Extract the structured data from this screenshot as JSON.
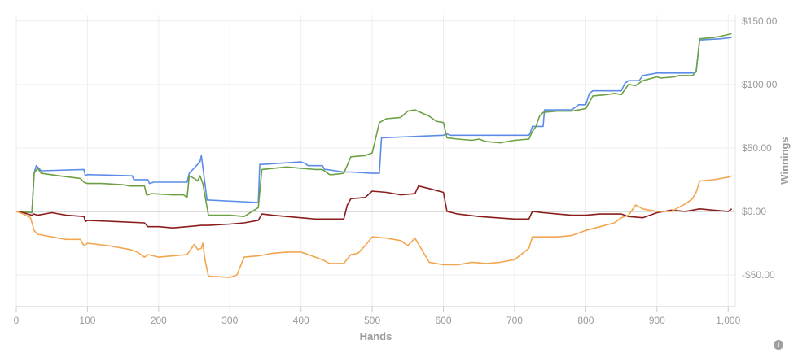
{
  "chart_data": {
    "type": "line",
    "xlabel": "Hands",
    "ylabel": "Winnings",
    "xlim": [
      0,
      1010
    ],
    "ylim": [
      -75,
      155
    ],
    "x_ticks": [
      0,
      100,
      200,
      300,
      400,
      500,
      600,
      700,
      800,
      900,
      1000
    ],
    "x_tick_labels": [
      "0",
      "100",
      "200",
      "300",
      "400",
      "500",
      "600",
      "700",
      "800",
      "900",
      "1,000"
    ],
    "y_ticks": [
      -50,
      0,
      50,
      100,
      150
    ],
    "y_tick_labels": [
      "-$50.00",
      "$0.00",
      "$50.00",
      "$100.00",
      "$150.00"
    ],
    "grid": true,
    "y_axis_position": "right",
    "legend": "none",
    "series": [
      {
        "color": "#5b8de8",
        "x": [
          0,
          22,
          25,
          28,
          30,
          35,
          35,
          95,
          97,
          100,
          163,
          165,
          185,
          187,
          193,
          196,
          200,
          240,
          243,
          258,
          260,
          268,
          270,
          340,
          342,
          345,
          400,
          405,
          410,
          430,
          433,
          436,
          460,
          470,
          500,
          510,
          513,
          600,
          605,
          610,
          640,
          700,
          710,
          720,
          722,
          725,
          740,
          742,
          760,
          780,
          790,
          800,
          805,
          810,
          850,
          855,
          860,
          875,
          880,
          900,
          950,
          955,
          960,
          990,
          1005
        ],
        "y": [
          0,
          -1,
          30,
          36,
          35,
          32,
          32,
          33,
          28,
          29,
          28,
          25,
          25,
          22,
          23,
          23,
          23,
          23,
          30,
          39,
          44,
          9,
          9,
          7,
          37,
          37,
          39,
          38,
          36,
          36,
          33,
          33,
          31,
          31,
          30,
          30,
          58,
          60,
          61,
          60,
          60,
          60,
          60,
          60,
          62,
          67,
          67,
          80,
          80,
          80,
          84,
          84,
          93,
          95,
          95,
          101,
          103,
          103,
          107,
          109,
          109,
          110,
          135,
          136,
          137
        ]
      },
      {
        "color": "#6ca043",
        "x": [
          0,
          22,
          25,
          30,
          35,
          60,
          75,
          90,
          95,
          100,
          120,
          150,
          160,
          180,
          183,
          185,
          190,
          220,
          235,
          240,
          243,
          250,
          255,
          258,
          262,
          270,
          300,
          320,
          340,
          345,
          380,
          400,
          420,
          430,
          440,
          445,
          460,
          470,
          490,
          500,
          510,
          520,
          540,
          550,
          560,
          580,
          590,
          600,
          605,
          620,
          640,
          650,
          660,
          680,
          700,
          720,
          725,
          730,
          735,
          740,
          760,
          780,
          790,
          800,
          810,
          830,
          840,
          850,
          855,
          860,
          870,
          880,
          900,
          905,
          925,
          930,
          950,
          955,
          960,
          980,
          990,
          1005
        ],
        "y": [
          0,
          -1,
          30,
          34,
          30,
          28,
          27,
          26,
          23,
          22,
          22,
          21,
          20,
          20,
          13,
          13,
          14,
          13,
          13,
          11,
          28,
          26,
          24,
          28,
          22,
          -3,
          -3,
          -4,
          3,
          33,
          35,
          34,
          33,
          33,
          29,
          29,
          30,
          43,
          44,
          46,
          70,
          73,
          74,
          79,
          80,
          75,
          71,
          70,
          58,
          57,
          56,
          57,
          55,
          54,
          56,
          57,
          63,
          67,
          75,
          78,
          79,
          79,
          80,
          81,
          91,
          92,
          93,
          92,
          96,
          100,
          99,
          103,
          106,
          105,
          106,
          107,
          107,
          110,
          136,
          137,
          138,
          140
        ]
      },
      {
        "color": "#8a1c1c",
        "x": [
          0,
          10,
          22,
          25,
          30,
          50,
          70,
          95,
          97,
          100,
          140,
          180,
          185,
          200,
          220,
          240,
          260,
          270,
          300,
          320,
          340,
          345,
          360,
          380,
          420,
          460,
          465,
          470,
          490,
          500,
          520,
          540,
          560,
          565,
          580,
          600,
          605,
          620,
          650,
          700,
          720,
          725,
          740,
          760,
          780,
          800,
          820,
          850,
          860,
          880,
          900,
          920,
          940,
          960,
          980,
          1000,
          1005
        ],
        "y": [
          0,
          -1,
          -3,
          -2,
          -3,
          -1,
          -3,
          -4,
          -8,
          -7,
          -8,
          -9,
          -12,
          -12,
          -13,
          -12,
          -11,
          -11,
          -10,
          -9,
          -7,
          -2,
          -3,
          -4,
          -6,
          -6,
          5,
          10,
          11,
          16,
          15,
          13,
          14,
          20,
          18,
          15,
          0,
          -2,
          -4,
          -6,
          -6,
          0,
          -1,
          -2,
          -3,
          -3,
          -2,
          -2,
          -4,
          -5,
          -1,
          1,
          0,
          2,
          1,
          0,
          2
        ]
      },
      {
        "color": "#f2a650",
        "x": [
          0,
          10,
          20,
          25,
          30,
          50,
          70,
          90,
          95,
          100,
          130,
          160,
          170,
          180,
          185,
          200,
          220,
          240,
          250,
          255,
          260,
          262,
          265,
          270,
          300,
          310,
          320,
          340,
          360,
          380,
          400,
          430,
          440,
          460,
          470,
          480,
          490,
          500,
          520,
          540,
          550,
          560,
          580,
          600,
          620,
          640,
          660,
          680,
          700,
          720,
          725,
          740,
          760,
          780,
          800,
          820,
          840,
          850,
          860,
          870,
          880,
          900,
          905,
          920,
          940,
          950,
          955,
          960,
          980,
          1000,
          1005
        ],
        "y": [
          0,
          -2,
          -5,
          -15,
          -18,
          -20,
          -22,
          -22,
          -27,
          -25,
          -27,
          -30,
          -32,
          -36,
          -34,
          -36,
          -35,
          -34,
          -26,
          -30,
          -29,
          -25,
          -38,
          -51,
          -52,
          -50,
          -36,
          -35,
          -33,
          -32,
          -32,
          -38,
          -41,
          -41,
          -34,
          -33,
          -27,
          -20,
          -21,
          -23,
          -27,
          -21,
          -40,
          -42,
          -42,
          -40,
          -41,
          -40,
          -38,
          -29,
          -20,
          -20,
          -20,
          -19,
          -15,
          -12,
          -9,
          -5,
          -3,
          5,
          2,
          0,
          0,
          0,
          6,
          10,
          15,
          24,
          25,
          27,
          28
        ]
      }
    ]
  },
  "icons": {
    "info": "info-icon",
    "info_glyph": "i"
  }
}
